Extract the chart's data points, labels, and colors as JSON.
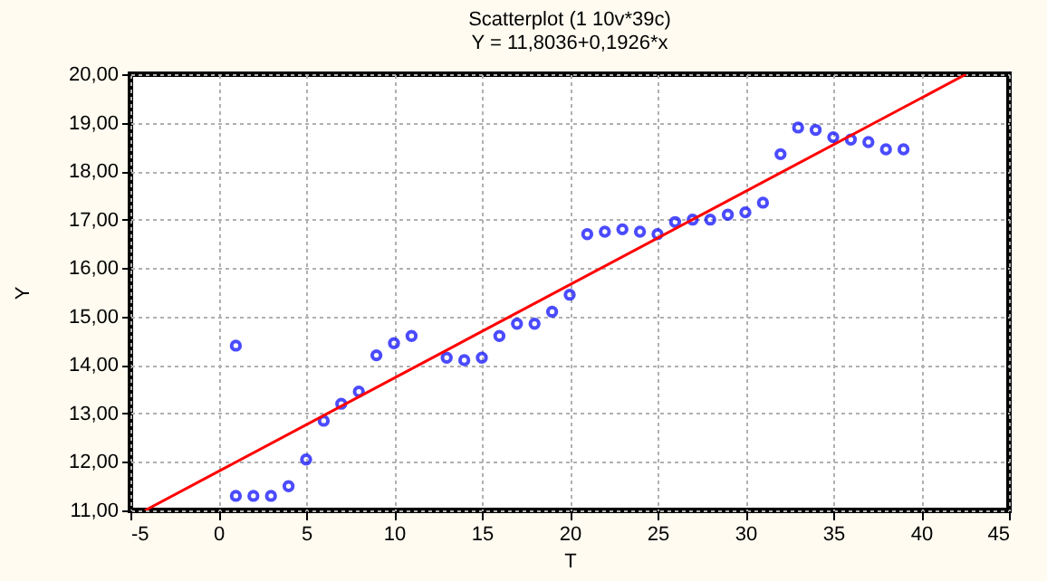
{
  "chart_data": {
    "type": "scatter",
    "title": "Scatterplot (1 10v*39c)",
    "subtitle": "Y = 11,8036+0,1926*x",
    "xlabel": "T",
    "ylabel": "Y",
    "xlim": [
      -5,
      45
    ],
    "xticks": [
      -5,
      0,
      5,
      10,
      15,
      20,
      25,
      30,
      35,
      40,
      45
    ],
    "ylim": [
      11,
      20
    ],
    "yticks": [
      {
        "value": 11,
        "label": "11,00"
      },
      {
        "value": 12,
        "label": "12,00"
      },
      {
        "value": 13,
        "label": "13,00"
      },
      {
        "value": 14,
        "label": "14,00"
      },
      {
        "value": 15,
        "label": "15,00"
      },
      {
        "value": 16,
        "label": "16,00"
      },
      {
        "value": 17,
        "label": "17,00"
      },
      {
        "value": 18,
        "label": "18,00"
      },
      {
        "value": 19,
        "label": "19,00"
      },
      {
        "value": 20,
        "label": "20,00"
      }
    ],
    "grid": true,
    "series": [
      {
        "marker": "circle",
        "color": "#0000ff",
        "x": [
          1,
          1,
          2,
          3,
          4,
          5,
          6,
          7,
          8,
          9,
          10,
          11,
          13,
          14,
          15,
          16,
          17,
          18,
          19,
          20,
          21,
          22,
          23,
          24,
          25,
          26,
          27,
          28,
          29,
          30,
          31,
          32,
          33,
          34,
          35,
          36,
          37,
          38,
          39
        ],
        "values": [
          14.4,
          11.3,
          11.3,
          11.3,
          11.5,
          12.05,
          12.85,
          13.2,
          13.45,
          14.2,
          14.45,
          14.6,
          14.15,
          14.1,
          14.15,
          14.6,
          14.85,
          14.85,
          15.1,
          15.45,
          16.7,
          16.75,
          16.8,
          16.75,
          16.7,
          16.95,
          17.0,
          17.0,
          17.1,
          17.15,
          17.35,
          18.35,
          18.9,
          18.85,
          18.7,
          18.65,
          18.6,
          18.45,
          18.45
        ]
      },
      {
        "type": "line",
        "marker": "none",
        "color": "#ff0000",
        "x": [
          -4.17,
          42.56
        ],
        "values": [
          11.0,
          20.0
        ]
      }
    ]
  }
}
